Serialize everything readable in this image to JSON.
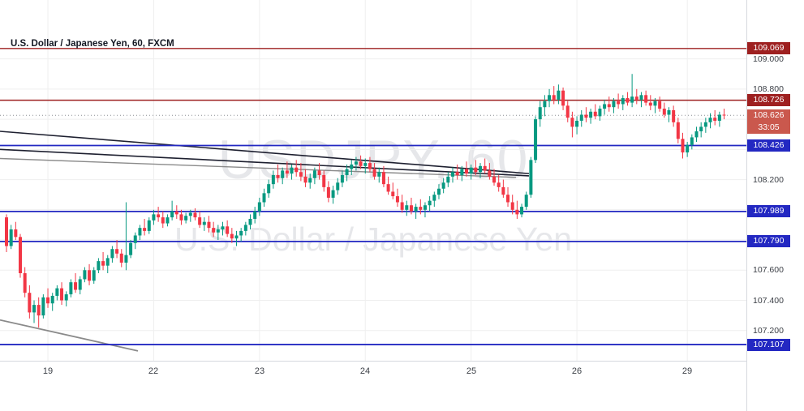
{
  "legend": {
    "title": "U.S. Dollar / Japanese Yen, 60, FXCM"
  },
  "watermark": {
    "line1": "USDJPY, 60",
    "line2": "U.S. Dollar / Japanese Yen"
  },
  "colors": {
    "up": "#089981",
    "down": "#f23645",
    "grid": "#efefef",
    "resistance": "#9e2020",
    "support": "#2328c2",
    "current": "#ca584d",
    "current_line": "#8a8d93",
    "trend_dark": "#1e2030",
    "trend_gray": "#8a8a8a",
    "axis_text": "#3a3e45"
  },
  "price_axis": {
    "countdown": "33:05"
  },
  "time_axis": {
    "ticks": [
      {
        "label": "19",
        "i": 9
      },
      {
        "label": "22",
        "i": 32
      },
      {
        "label": "23",
        "i": 55
      },
      {
        "label": "24",
        "i": 78
      },
      {
        "label": "25",
        "i": 101
      },
      {
        "label": "26",
        "i": 124
      },
      {
        "label": "29",
        "i": 148
      }
    ]
  },
  "chart_data": {
    "type": "candlestick",
    "title": "U.S. Dollar / Japanese Yen, 60, FXCM",
    "symbol": "USDJPY",
    "timeframe": "60",
    "provider": "FXCM",
    "ylim": [
      107.0,
      109.39
    ],
    "grid": {
      "step": 0.2,
      "min": 107.2,
      "max": 109.0
    },
    "y_ticks": [
      {
        "price": 109.0,
        "label": "109.000"
      },
      {
        "price": 108.8,
        "label": "108.800"
      },
      {
        "price": 108.2,
        "label": "108.200"
      },
      {
        "price": 107.6,
        "label": "107.600"
      },
      {
        "price": 107.4,
        "label": "107.400"
      },
      {
        "price": 107.2,
        "label": "107.200"
      }
    ],
    "levels": [
      {
        "price": 109.069,
        "label": "109.069",
        "kind": "resistance"
      },
      {
        "price": 108.726,
        "label": "108.726",
        "kind": "resistance"
      },
      {
        "price": 108.426,
        "label": "108.426",
        "kind": "support"
      },
      {
        "price": 107.989,
        "label": "107.989",
        "kind": "support"
      },
      {
        "price": 107.79,
        "label": "107.790",
        "kind": "support"
      },
      {
        "price": 107.107,
        "label": "107.107",
        "kind": "support"
      }
    ],
    "current": {
      "price": 108.626,
      "label": "108.626",
      "countdown": "33:05"
    },
    "trendlines": [
      {
        "x1": 0,
        "p1": 108.52,
        "x2": 652,
        "p2": 108.24,
        "color": "dark",
        "w": 1.6
      },
      {
        "x1": 0,
        "p1": 108.4,
        "x2": 652,
        "p2": 108.225,
        "color": "dark",
        "w": 1.6
      },
      {
        "x1": 0,
        "p1": 108.34,
        "x2": 636,
        "p2": 108.215,
        "color": "gray",
        "w": 1.4
      },
      {
        "x1": 0,
        "p1": 107.27,
        "x2": 170,
        "p2": 107.065,
        "color": "gray",
        "w": 1.8
      }
    ],
    "layout": {
      "x_offset": 6,
      "candle_spacing": 5.67,
      "candle_width": 4
    },
    "candles": [
      [
        107.95,
        107.97,
        107.72,
        107.76
      ],
      [
        107.76,
        107.9,
        107.74,
        107.87
      ],
      [
        107.87,
        107.92,
        107.8,
        107.82
      ],
      [
        107.82,
        107.84,
        107.55,
        107.58
      ],
      [
        107.58,
        107.62,
        107.42,
        107.45
      ],
      [
        107.45,
        107.5,
        107.28,
        107.32
      ],
      [
        107.32,
        107.4,
        107.25,
        107.37
      ],
      [
        107.37,
        107.42,
        107.22,
        107.3
      ],
      [
        107.3,
        107.44,
        107.28,
        107.42
      ],
      [
        107.42,
        107.48,
        107.35,
        107.38
      ],
      [
        107.38,
        107.45,
        107.33,
        107.43
      ],
      [
        107.43,
        107.5,
        107.4,
        107.48
      ],
      [
        107.48,
        107.52,
        107.37,
        107.4
      ],
      [
        107.4,
        107.46,
        107.36,
        107.44
      ],
      [
        107.44,
        107.54,
        107.42,
        107.52
      ],
      [
        107.52,
        107.58,
        107.45,
        107.47
      ],
      [
        107.47,
        107.56,
        107.44,
        107.54
      ],
      [
        107.54,
        107.62,
        107.52,
        107.6
      ],
      [
        107.6,
        107.64,
        107.5,
        107.53
      ],
      [
        107.53,
        107.62,
        107.51,
        107.6
      ],
      [
        107.6,
        107.68,
        107.58,
        107.66
      ],
      [
        107.66,
        107.72,
        107.6,
        107.63
      ],
      [
        107.63,
        107.7,
        107.58,
        107.68
      ],
      [
        107.68,
        107.76,
        107.65,
        107.74
      ],
      [
        107.74,
        107.8,
        107.68,
        107.71
      ],
      [
        107.71,
        107.74,
        107.62,
        107.65
      ],
      [
        107.65,
        108.05,
        107.6,
        107.7
      ],
      [
        107.7,
        107.8,
        107.68,
        107.78
      ],
      [
        107.78,
        107.85,
        107.74,
        107.83
      ],
      [
        107.83,
        107.9,
        107.8,
        107.88
      ],
      [
        107.88,
        107.94,
        107.83,
        107.86
      ],
      [
        107.86,
        107.95,
        107.84,
        107.93
      ],
      [
        107.93,
        108.0,
        107.9,
        107.97
      ],
      [
        107.97,
        108.02,
        107.92,
        107.95
      ],
      [
        107.95,
        107.99,
        107.88,
        107.91
      ],
      [
        107.91,
        107.97,
        107.89,
        107.95
      ],
      [
        107.95,
        108.06,
        107.93,
        107.99
      ],
      [
        107.99,
        108.03,
        107.94,
        107.97
      ],
      [
        107.97,
        108.0,
        107.9,
        107.93
      ],
      [
        107.93,
        107.98,
        107.91,
        107.96
      ],
      [
        107.96,
        108.0,
        107.92,
        107.98
      ],
      [
        107.98,
        108.01,
        107.93,
        107.95
      ],
      [
        107.95,
        107.99,
        107.88,
        107.9
      ],
      [
        107.9,
        107.95,
        107.86,
        107.92
      ],
      [
        107.92,
        107.96,
        107.85,
        107.88
      ],
      [
        107.88,
        107.92,
        107.82,
        107.85
      ],
      [
        107.85,
        107.9,
        107.8,
        107.87
      ],
      [
        107.87,
        107.92,
        107.83,
        107.89
      ],
      [
        107.89,
        107.93,
        107.82,
        107.84
      ],
      [
        107.84,
        107.88,
        107.78,
        107.81
      ],
      [
        107.81,
        107.86,
        107.76,
        107.83
      ],
      [
        107.83,
        107.88,
        107.79,
        107.86
      ],
      [
        107.86,
        107.92,
        107.83,
        107.9
      ],
      [
        107.9,
        107.97,
        107.87,
        107.94
      ],
      [
        107.94,
        108.02,
        107.91,
        107.99
      ],
      [
        107.99,
        108.08,
        107.96,
        108.05
      ],
      [
        108.05,
        108.14,
        108.02,
        108.11
      ],
      [
        108.11,
        108.2,
        108.08,
        108.17
      ],
      [
        108.17,
        108.26,
        108.14,
        108.23
      ],
      [
        108.23,
        108.3,
        108.18,
        108.21
      ],
      [
        108.21,
        108.28,
        108.17,
        108.26
      ],
      [
        108.26,
        108.32,
        108.21,
        108.24
      ],
      [
        108.24,
        108.3,
        108.2,
        108.28
      ],
      [
        108.28,
        108.33,
        108.22,
        108.25
      ],
      [
        108.25,
        108.31,
        108.19,
        108.22
      ],
      [
        108.22,
        108.27,
        108.15,
        108.18
      ],
      [
        108.18,
        108.24,
        108.14,
        108.21
      ],
      [
        108.21,
        108.28,
        108.17,
        108.26
      ],
      [
        108.26,
        108.31,
        108.2,
        108.23
      ],
      [
        108.23,
        108.26,
        108.12,
        108.15
      ],
      [
        108.15,
        108.19,
        108.05,
        108.08
      ],
      [
        108.08,
        108.16,
        108.04,
        108.13
      ],
      [
        108.13,
        108.21,
        108.1,
        108.18
      ],
      [
        108.18,
        108.26,
        108.15,
        108.23
      ],
      [
        108.23,
        108.3,
        108.19,
        108.27
      ],
      [
        108.27,
        108.33,
        108.23,
        108.3
      ],
      [
        108.3,
        108.35,
        108.26,
        108.32
      ],
      [
        108.32,
        108.36,
        108.27,
        108.29
      ],
      [
        108.29,
        108.34,
        108.24,
        108.31
      ],
      [
        108.31,
        108.35,
        108.25,
        108.27
      ],
      [
        108.27,
        108.31,
        108.2,
        108.22
      ],
      [
        108.22,
        108.28,
        108.18,
        108.25
      ],
      [
        108.25,
        108.29,
        108.15,
        108.17
      ],
      [
        108.17,
        108.22,
        108.1,
        108.12
      ],
      [
        108.12,
        108.18,
        108.07,
        108.09
      ],
      [
        108.09,
        108.14,
        108.02,
        108.05
      ],
      [
        108.05,
        108.1,
        107.98,
        108.0
      ],
      [
        108.0,
        108.06,
        107.96,
        108.03
      ],
      [
        108.03,
        108.08,
        107.97,
        107.99
      ],
      [
        107.99,
        108.04,
        107.94,
        108.02
      ],
      [
        108.02,
        108.07,
        107.97,
        108.0
      ],
      [
        108.0,
        108.05,
        107.95,
        108.03
      ],
      [
        108.03,
        108.09,
        107.99,
        108.06
      ],
      [
        108.06,
        108.12,
        108.02,
        108.1
      ],
      [
        108.1,
        108.17,
        108.07,
        108.14
      ],
      [
        108.14,
        108.21,
        108.11,
        108.18
      ],
      [
        108.18,
        108.25,
        108.15,
        108.22
      ],
      [
        108.22,
        108.28,
        108.18,
        108.25
      ],
      [
        108.25,
        108.3,
        108.2,
        108.23
      ],
      [
        108.23,
        108.29,
        108.19,
        108.27
      ],
      [
        108.27,
        108.32,
        108.22,
        108.24
      ],
      [
        108.24,
        108.3,
        108.2,
        108.28
      ],
      [
        108.28,
        108.33,
        108.23,
        108.25
      ],
      [
        108.25,
        108.31,
        108.21,
        108.29
      ],
      [
        108.29,
        108.34,
        108.24,
        108.26
      ],
      [
        108.26,
        108.31,
        108.2,
        108.22
      ],
      [
        108.22,
        108.27,
        108.16,
        108.18
      ],
      [
        108.18,
        108.23,
        108.12,
        108.15
      ],
      [
        108.15,
        108.2,
        108.08,
        108.1
      ],
      [
        108.1,
        108.15,
        108.02,
        108.05
      ],
      [
        108.05,
        108.1,
        107.97,
        108.0
      ],
      [
        108.0,
        108.06,
        107.94,
        107.97
      ],
      [
        107.97,
        108.04,
        107.95,
        108.02
      ],
      [
        108.02,
        108.12,
        108.0,
        108.1
      ],
      [
        108.1,
        108.35,
        108.08,
        108.33
      ],
      [
        108.33,
        108.62,
        108.31,
        108.6
      ],
      [
        108.6,
        108.72,
        108.55,
        108.68
      ],
      [
        108.68,
        108.76,
        108.62,
        108.72
      ],
      [
        108.72,
        108.8,
        108.68,
        108.76
      ],
      [
        108.76,
        108.82,
        108.7,
        108.73
      ],
      [
        108.73,
        108.83,
        108.7,
        108.79
      ],
      [
        108.79,
        108.81,
        108.66,
        108.69
      ],
      [
        108.69,
        108.72,
        108.58,
        108.61
      ],
      [
        108.61,
        108.65,
        108.48,
        108.55
      ],
      [
        108.55,
        108.62,
        108.5,
        108.59
      ],
      [
        108.59,
        108.66,
        108.55,
        108.63
      ],
      [
        108.63,
        108.68,
        108.58,
        108.61
      ],
      [
        108.61,
        108.67,
        108.57,
        108.65
      ],
      [
        108.65,
        108.7,
        108.6,
        108.62
      ],
      [
        108.62,
        108.69,
        108.59,
        108.67
      ],
      [
        108.67,
        108.73,
        108.63,
        108.7
      ],
      [
        108.7,
        108.75,
        108.65,
        108.68
      ],
      [
        108.68,
        108.74,
        108.64,
        108.72
      ],
      [
        108.72,
        108.77,
        108.67,
        108.7
      ],
      [
        108.7,
        108.76,
        108.66,
        108.74
      ],
      [
        108.74,
        108.78,
        108.69,
        108.71
      ],
      [
        108.71,
        108.9,
        108.68,
        108.75
      ],
      [
        108.75,
        108.8,
        108.7,
        108.73
      ],
      [
        108.73,
        108.78,
        108.68,
        108.76
      ],
      [
        108.76,
        108.79,
        108.69,
        108.71
      ],
      [
        108.71,
        108.76,
        108.66,
        108.69
      ],
      [
        108.69,
        108.74,
        108.64,
        108.72
      ],
      [
        108.72,
        108.75,
        108.65,
        108.67
      ],
      [
        108.67,
        108.71,
        108.61,
        108.63
      ],
      [
        108.63,
        108.68,
        108.58,
        108.66
      ],
      [
        108.66,
        108.69,
        108.55,
        108.58
      ],
      [
        108.58,
        108.61,
        108.44,
        108.47
      ],
      [
        108.47,
        108.51,
        108.34,
        108.38
      ],
      [
        108.38,
        108.45,
        108.35,
        108.43
      ],
      [
        108.43,
        108.5,
        108.4,
        108.48
      ],
      [
        108.48,
        108.55,
        108.45,
        108.52
      ],
      [
        108.52,
        108.58,
        108.48,
        108.55
      ],
      [
        108.55,
        108.61,
        108.51,
        108.58
      ],
      [
        108.58,
        108.64,
        108.54,
        108.61
      ],
      [
        108.61,
        108.66,
        108.56,
        108.59
      ],
      [
        108.59,
        108.65,
        108.55,
        108.63
      ],
      [
        108.63,
        108.67,
        108.6,
        108.626
      ]
    ]
  }
}
